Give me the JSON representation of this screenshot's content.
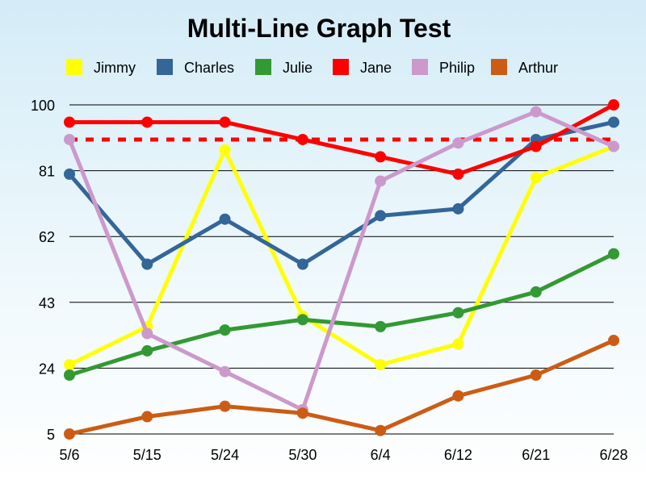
{
  "chart_data": {
    "type": "line",
    "title": "Multi-Line Graph Test",
    "xlabel": "",
    "ylabel": "",
    "categories": [
      "5/6",
      "5/15",
      "5/24",
      "5/30",
      "6/4",
      "6/12",
      "6/21",
      "6/28"
    ],
    "yticks": [
      5,
      24,
      43,
      62,
      81,
      100
    ],
    "ylim": [
      5,
      100
    ],
    "grid": true,
    "legend_position": "top",
    "reference_line": {
      "value": 90,
      "color": "#ff0000",
      "style": "dashed"
    },
    "series": [
      {
        "name": "Jimmy",
        "color": "#ffff00",
        "values": [
          25,
          36,
          87,
          39,
          25,
          31,
          79,
          88
        ]
      },
      {
        "name": "Charles",
        "color": "#336699",
        "values": [
          80,
          54,
          67,
          54,
          68,
          70,
          90,
          95
        ]
      },
      {
        "name": "Julie",
        "color": "#339933",
        "values": [
          22,
          29,
          35,
          38,
          36,
          40,
          46,
          57
        ]
      },
      {
        "name": "Jane",
        "color": "#ff0000",
        "values": [
          95,
          95,
          95,
          90,
          85,
          80,
          88,
          100
        ]
      },
      {
        "name": "Philip",
        "color": "#cc99cc",
        "values": [
          90,
          34,
          23,
          12,
          78,
          89,
          98,
          88
        ]
      },
      {
        "name": "Arthur",
        "color": "#cc5c14",
        "values": [
          5,
          10,
          13,
          11,
          6,
          16,
          22,
          32
        ]
      }
    ]
  }
}
